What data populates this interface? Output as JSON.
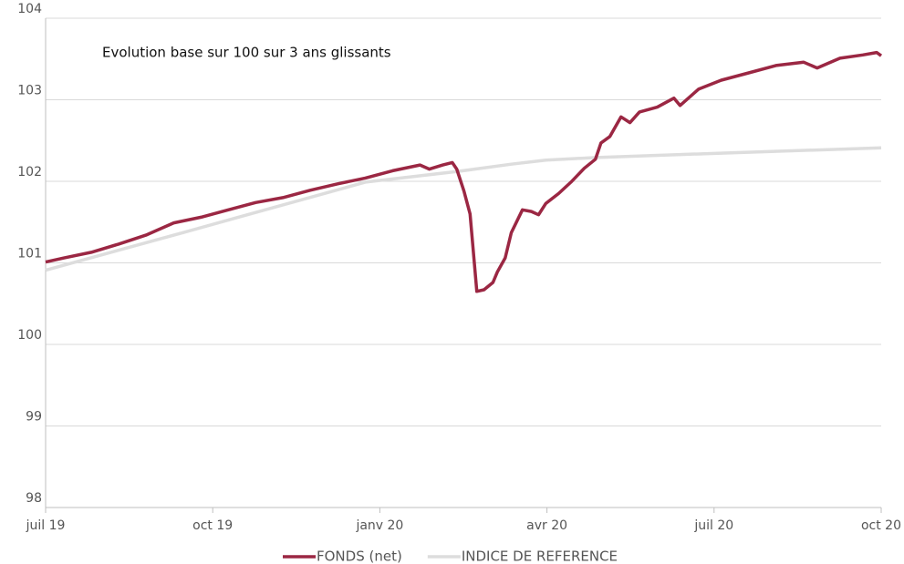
{
  "chart_data": {
    "type": "line",
    "title": "Evolution base sur 100 sur 3 ans glissants",
    "xlim": [
      0,
      15
    ],
    "xticks": [
      {
        "value": 0,
        "label": "juil 19"
      },
      {
        "value": 3,
        "label": "oct 19"
      },
      {
        "value": 6,
        "label": "janv 20"
      },
      {
        "value": 9,
        "label": "avr 20"
      },
      {
        "value": 12,
        "label": "juil 20"
      },
      {
        "value": 15,
        "label": "oct 20"
      }
    ],
    "ylim": [
      98,
      104
    ],
    "yticks": [
      98,
      99,
      100,
      101,
      102,
      103,
      104
    ],
    "grid": true,
    "legend": "bottom",
    "series": [
      {
        "name": "FONDS (net)",
        "color": "#9b2743",
        "x": [
          0,
          0.33,
          0.82,
          1.31,
          1.8,
          2.3,
          2.79,
          3.28,
          3.77,
          4.26,
          4.75,
          5.25,
          5.74,
          6.23,
          6.72,
          6.89,
          7.13,
          7.3,
          7.38,
          7.51,
          7.62,
          7.74,
          7.87,
          8.03,
          8.11,
          8.25,
          8.36,
          8.56,
          8.72,
          8.85,
          8.98,
          9.21,
          9.43,
          9.67,
          9.87,
          9.97,
          10.13,
          10.33,
          10.49,
          10.66,
          10.98,
          11.28,
          11.39,
          11.72,
          12.13,
          12.62,
          13.11,
          13.61,
          13.85,
          14.26,
          14.67,
          14.92,
          15
        ],
        "values": [
          101.01,
          101.06,
          101.13,
          101.23,
          101.34,
          101.49,
          101.56,
          101.65,
          101.74,
          101.8,
          101.89,
          101.97,
          102.04,
          102.13,
          102.2,
          102.15,
          102.2,
          102.23,
          102.15,
          101.88,
          101.6,
          100.65,
          100.67,
          100.76,
          100.89,
          101.06,
          101.37,
          101.65,
          101.63,
          101.59,
          101.73,
          101.85,
          101.99,
          102.16,
          102.27,
          102.47,
          102.55,
          102.79,
          102.72,
          102.85,
          102.91,
          103.02,
          102.93,
          103.13,
          103.24,
          103.33,
          103.42,
          103.46,
          103.39,
          103.51,
          103.55,
          103.58,
          103.54
        ]
      },
      {
        "name": "INDICE DE REFERENCE",
        "color": "#dddddd",
        "x": [
          0,
          2.46,
          5.74,
          7.38,
          8.36,
          8.98,
          9.84,
          12.3,
          15
        ],
        "values": [
          100.91,
          101.37,
          101.99,
          102.12,
          102.21,
          102.26,
          102.29,
          102.35,
          102.41
        ]
      }
    ]
  }
}
